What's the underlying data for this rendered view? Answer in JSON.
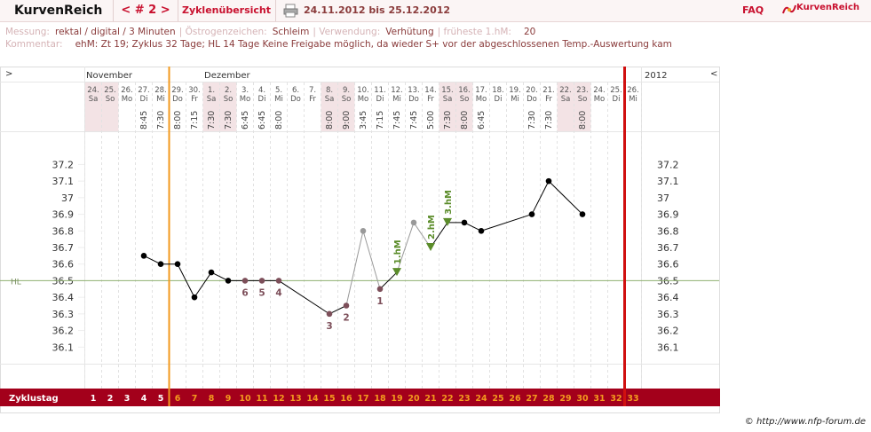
{
  "header": {
    "logo": "KurvenReich",
    "nav": "< # 2 >",
    "overview": "Zyklenübersicht",
    "period": "24.11.2012 bis 25.12.2012",
    "faq": "FAQ",
    "brand": "KurvenReich"
  },
  "info": {
    "measure_label": "Messung:",
    "measure": "rektal / digital / 3 Minuten",
    "estrogen_label": "Östrogenzeichen:",
    "estrogen": "Schleim",
    "usage_label": "Verwendung:",
    "usage": "Verhütung",
    "earliest_label": "früheste 1.hM:",
    "earliest": "20",
    "comment_label": "Kommentar:",
    "comment": "ehM: Zt 19; Zyklus 32 Tage; HL 14 Tage Keine Freigabe möglich, da wieder S+ vor der abgeschlossenen Temp.-Auswertung kam"
  },
  "chart_data": {
    "type": "line",
    "nav_left": ">",
    "nav_right": "<",
    "year": "2012",
    "months": [
      {
        "label": "November",
        "index": 0
      },
      {
        "label": "Dezember",
        "index": 7
      }
    ],
    "day_labels": [
      "24.",
      "25.",
      "26.",
      "27.",
      "28.",
      "29.",
      "30.",
      "1.",
      "2.",
      "3.",
      "4.",
      "5.",
      "6.",
      "7.",
      "8.",
      "9.",
      "10.",
      "11.",
      "12.",
      "13.",
      "14.",
      "15.",
      "16.",
      "17.",
      "18.",
      "19.",
      "20.",
      "21.",
      "22.",
      "23.",
      "24.",
      "25.",
      "26."
    ],
    "weekdays": [
      "Sa",
      "So",
      "Mo",
      "Di",
      "Mi",
      "Do",
      "Fr",
      "Sa",
      "So",
      "Mo",
      "Di",
      "Mi",
      "Do",
      "Fr",
      "Sa",
      "So",
      "Mo",
      "Di",
      "Mi",
      "Do",
      "Fr",
      "Sa",
      "So",
      "Mo",
      "Di",
      "Mi",
      "Do",
      "Fr",
      "Sa",
      "So",
      "Mo",
      "Di",
      "Mi"
    ],
    "times": [
      null,
      null,
      null,
      "8:45",
      "7:30",
      "8:00",
      "7:15",
      "7:30",
      "7:30",
      "6:45",
      "6:45",
      "8:00",
      null,
      null,
      "8:00",
      "9:00",
      "3:45",
      "7:15",
      "7:45",
      "7:45",
      "5:00",
      "7:30",
      "8:00",
      "6:45",
      null,
      null,
      "7:30",
      "7:30",
      null,
      "8:00",
      null,
      null,
      null
    ],
    "series": [
      {
        "values": [
          null,
          null,
          null,
          36.65,
          36.6,
          36.6,
          36.4,
          36.55,
          36.5,
          36.5,
          36.5,
          36.5,
          null,
          null,
          36.3,
          36.35,
          36.8,
          36.45,
          36.55,
          36.85,
          36.7,
          36.85,
          36.85,
          36.8,
          null,
          null,
          36.9,
          37.1,
          null,
          36.9,
          null,
          null,
          null
        ],
        "color": "#000000"
      }
    ],
    "excluded": [
      false,
      false,
      false,
      false,
      false,
      false,
      false,
      false,
      false,
      false,
      false,
      false,
      false,
      false,
      false,
      false,
      true,
      false,
      false,
      true,
      false,
      false,
      false,
      false,
      false,
      false,
      false,
      false,
      false,
      false,
      false,
      false,
      false
    ],
    "point_labels": [
      null,
      null,
      null,
      null,
      null,
      null,
      null,
      null,
      null,
      "6",
      "5",
      "4",
      null,
      null,
      "3",
      "2",
      null,
      "1",
      null,
      null,
      null,
      null,
      null,
      null,
      null,
      null,
      null,
      null,
      null,
      null,
      null,
      null,
      null
    ],
    "hm_labels": [
      null,
      null,
      null,
      null,
      null,
      null,
      null,
      null,
      null,
      null,
      null,
      null,
      null,
      null,
      null,
      null,
      null,
      null,
      "1.hM",
      null,
      "2.hM",
      "3.hM",
      null,
      null,
      null,
      null,
      null,
      null,
      null,
      null,
      null,
      null,
      null
    ],
    "colors": {
      "excluded": "#999999",
      "reference": "#7d4f5a",
      "hm": "#5b8c2a",
      "cover": "#8fb070",
      "shade": "#f3e3e5"
    },
    "ylim": [
      36.0,
      37.4
    ],
    "yticks": [
      36.1,
      36.2,
      36.3,
      36.4,
      36.5,
      36.6,
      36.7,
      36.8,
      36.9,
      37,
      37.1,
      37.2
    ],
    "cover_line": {
      "value": 36.5,
      "label": "HL"
    },
    "marker_lines": [
      {
        "after_day": 5,
        "color": "#f39a1e"
      },
      {
        "after_day": 32,
        "color": "#d01010"
      }
    ],
    "cycle_label": "Zyklustag",
    "cycle_days": [
      1,
      2,
      3,
      4,
      5,
      6,
      7,
      8,
      9,
      10,
      11,
      12,
      13,
      14,
      15,
      16,
      17,
      18,
      19,
      20,
      21,
      22,
      23,
      24,
      25,
      26,
      27,
      28,
      29,
      30,
      31,
      32,
      33
    ]
  },
  "footer": {
    "copyright": "© http://www.nfp-forum.de"
  }
}
